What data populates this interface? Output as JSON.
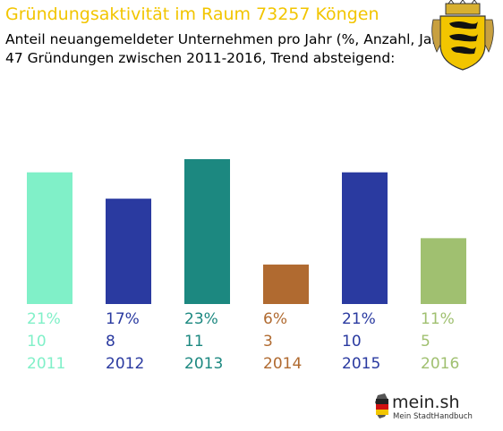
{
  "header": {
    "title": "Gründungsaktivität im Raum 73257 Köngen",
    "subtitle_line1": "Anteil neuangemeldeter Unternehmen pro Jahr (%, Anzahl, Jahr)",
    "subtitle_line2": "47 Gründungen zwischen 2011-2016, Trend absteigend:"
  },
  "logo": {
    "name": "mein.sh",
    "tagline": "Mein StadtHandbuch",
    "icon": "germany-map-icon"
  },
  "coat_of_arms": {
    "icon": "baden-wuerttemberg-coat-of-arms-icon"
  },
  "chart_data": {
    "type": "bar",
    "title": "Gründungsaktivität im Raum 73257 Köngen",
    "categories": [
      "2011",
      "2012",
      "2013",
      "2014",
      "2015",
      "2016"
    ],
    "values": [
      10,
      8,
      11,
      3,
      10,
      5
    ],
    "percent_labels": [
      "21%",
      "17%",
      "23%",
      "6%",
      "21%",
      "11%"
    ],
    "count_labels": [
      "10",
      "8",
      "11",
      "3",
      "10",
      "5"
    ],
    "colors": [
      "#80f0c8",
      "#2a3aa0",
      "#1c8880",
      "#b06a30",
      "#2a3aa0",
      "#a0c070"
    ],
    "ylim": [
      0,
      11
    ],
    "grid": false,
    "legend": "none"
  }
}
